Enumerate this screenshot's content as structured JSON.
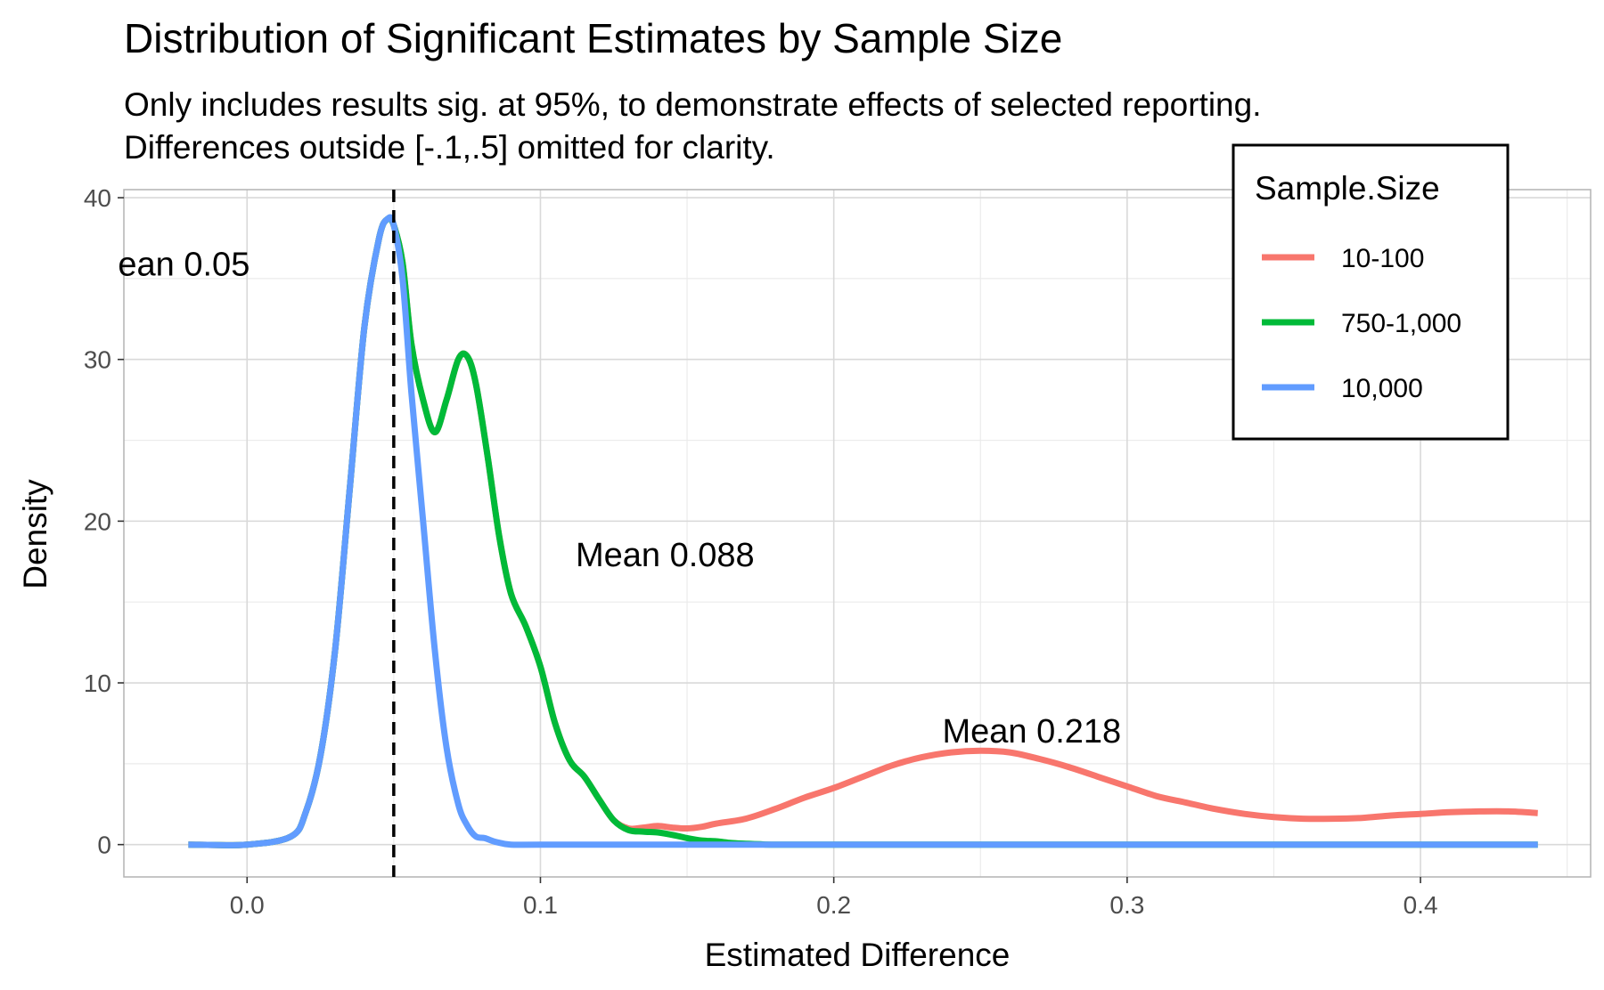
{
  "chart_data": {
    "type": "line",
    "title": "Distribution of Significant Estimates by Sample Size",
    "subtitle": [
      "Only includes results sig. at 95%, to demonstrate effects of selected reporting.",
      "Differences outside [-.1,.5] omitted for clarity."
    ],
    "xlabel": "Estimated Difference",
    "ylabel": "Density",
    "xlim": [
      -0.042,
      0.458
    ],
    "ylim": [
      -2,
      40.5
    ],
    "x_ticks": [
      0.0,
      0.1,
      0.2,
      0.3,
      0.4
    ],
    "x_tick_labels": [
      "0.0",
      "0.1",
      "0.2",
      "0.3",
      "0.4"
    ],
    "y_ticks": [
      0,
      10,
      20,
      30,
      40
    ],
    "y_tick_labels": [
      "0",
      "10",
      "20",
      "30",
      "40"
    ],
    "grid": true,
    "legend": {
      "title": "Sample.Size",
      "placement": "top-right"
    },
    "series": [
      {
        "name": "10-100",
        "color": "#F8766D",
        "x": [
          -0.02,
          0.0,
          0.015,
          0.02,
          0.025,
          0.03,
          0.035,
          0.04,
          0.045,
          0.048,
          0.05,
          0.053,
          0.056,
          0.06,
          0.064,
          0.068,
          0.072,
          0.075,
          0.078,
          0.082,
          0.086,
          0.09,
          0.095,
          0.1,
          0.105,
          0.11,
          0.115,
          0.12,
          0.125,
          0.13,
          0.135,
          0.14,
          0.145,
          0.15,
          0.155,
          0.16,
          0.17,
          0.18,
          0.19,
          0.2,
          0.21,
          0.22,
          0.23,
          0.24,
          0.25,
          0.26,
          0.27,
          0.28,
          0.29,
          0.3,
          0.31,
          0.32,
          0.33,
          0.34,
          0.35,
          0.36,
          0.37,
          0.38,
          0.39,
          0.4,
          0.41,
          0.42,
          0.43,
          0.44
        ],
        "y": [
          0,
          0,
          0.5,
          2,
          5.5,
          12,
          22,
          32,
          37.5,
          38.7,
          38.3,
          36,
          31,
          27.5,
          25.5,
          27.5,
          30,
          30.2,
          28.5,
          24,
          19,
          15.5,
          13.5,
          11,
          7.5,
          5.2,
          4.2,
          2.8,
          1.5,
          1.0,
          1.05,
          1.15,
          1.05,
          1.0,
          1.1,
          1.3,
          1.6,
          2.2,
          2.9,
          3.5,
          4.2,
          4.9,
          5.4,
          5.7,
          5.8,
          5.7,
          5.3,
          4.8,
          4.2,
          3.6,
          3.0,
          2.6,
          2.2,
          1.9,
          1.7,
          1.6,
          1.6,
          1.65,
          1.8,
          1.9,
          2.0,
          2.05,
          2.05,
          1.95
        ]
      },
      {
        "name": "750-1,000",
        "color": "#00BA38",
        "x": [
          -0.02,
          0.0,
          0.015,
          0.02,
          0.025,
          0.03,
          0.035,
          0.04,
          0.045,
          0.048,
          0.05,
          0.053,
          0.056,
          0.06,
          0.064,
          0.068,
          0.072,
          0.075,
          0.078,
          0.082,
          0.086,
          0.09,
          0.095,
          0.1,
          0.105,
          0.11,
          0.115,
          0.12,
          0.125,
          0.13,
          0.135,
          0.14,
          0.145,
          0.15,
          0.155,
          0.16,
          0.165,
          0.17,
          0.175,
          0.18,
          0.2,
          0.25,
          0.3,
          0.35,
          0.4,
          0.44
        ],
        "y": [
          0,
          0,
          0.5,
          2,
          5.5,
          12,
          22,
          32,
          37.5,
          38.7,
          38.3,
          36,
          31,
          27.5,
          25.5,
          27.5,
          30,
          30.2,
          28.5,
          24,
          19,
          15.5,
          13.5,
          11,
          7.5,
          5.2,
          4.2,
          2.8,
          1.5,
          0.9,
          0.8,
          0.75,
          0.6,
          0.4,
          0.25,
          0.2,
          0.1,
          0.05,
          0.02,
          0,
          0,
          0,
          0,
          0,
          0,
          0
        ]
      },
      {
        "name": "10,000",
        "color": "#619CFF",
        "x": [
          -0.02,
          0.0,
          0.015,
          0.02,
          0.025,
          0.03,
          0.035,
          0.04,
          0.045,
          0.048,
          0.05,
          0.053,
          0.056,
          0.06,
          0.064,
          0.068,
          0.072,
          0.075,
          0.078,
          0.081,
          0.085,
          0.09,
          0.1,
          0.15,
          0.2,
          0.25,
          0.3,
          0.35,
          0.4,
          0.44
        ],
        "y": [
          0,
          0,
          0.5,
          2,
          5.5,
          12,
          22,
          32,
          37.5,
          38.7,
          38.3,
          35,
          28,
          20,
          12,
          6,
          2.5,
          1.2,
          0.5,
          0.4,
          0.15,
          0,
          0,
          0,
          0,
          0,
          0,
          0,
          0,
          0
        ]
      }
    ],
    "vline": {
      "x": 0.05,
      "style": "dashed",
      "color": "#000000"
    },
    "annotations": [
      {
        "text": "ean 0.05",
        "x": -0.044,
        "y": 35.2
      },
      {
        "text": "Mean 0.088",
        "x": 0.112,
        "y": 17.2
      },
      {
        "text": "Mean 0.218",
        "x": 0.237,
        "y": 6.3
      }
    ]
  }
}
